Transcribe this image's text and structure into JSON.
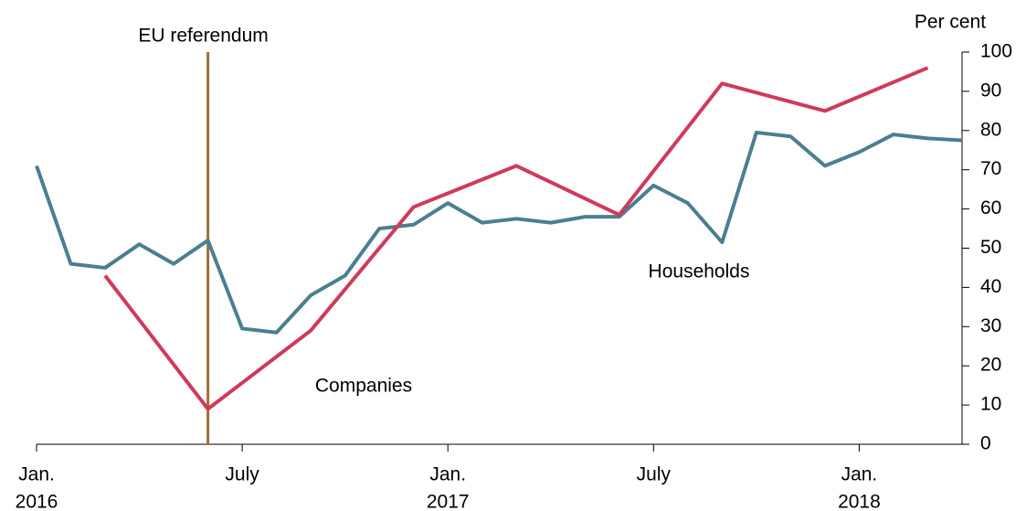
{
  "chart_data": {
    "type": "line",
    "y_axis_label": "Per cent",
    "annotation": {
      "text": "EU referendum",
      "x": "2016-06",
      "color": "#a46d35"
    },
    "xlim": [
      "2016-01",
      "2018-04"
    ],
    "xticks": [
      {
        "value": "2016-01",
        "label": [
          "Jan.",
          "2016"
        ]
      },
      {
        "value": "2016-07",
        "label": [
          "July"
        ]
      },
      {
        "value": "2017-01",
        "label": [
          "Jan.",
          "2017"
        ]
      },
      {
        "value": "2017-07",
        "label": [
          "July"
        ]
      },
      {
        "value": "2018-01",
        "label": [
          "Jan.",
          "2018"
        ]
      }
    ],
    "ylim": [
      0,
      100
    ],
    "yticks": [
      0,
      10,
      20,
      30,
      40,
      50,
      60,
      70,
      80,
      90,
      100
    ],
    "series": [
      {
        "name": "Households",
        "color": "#4a7f90",
        "x": [
          "2016-01",
          "2016-02",
          "2016-03",
          "2016-04",
          "2016-05",
          "2016-06",
          "2016-07",
          "2016-08",
          "2016-09",
          "2016-10",
          "2016-11",
          "2016-12",
          "2017-01",
          "2017-02",
          "2017-03",
          "2017-04",
          "2017-05",
          "2017-06",
          "2017-07",
          "2017-08",
          "2017-09",
          "2017-10",
          "2017-11",
          "2017-12",
          "2018-01",
          "2018-02",
          "2018-03",
          "2018-04"
        ],
        "values": [
          71,
          46,
          45,
          51,
          46,
          52,
          29.5,
          28.5,
          38,
          43,
          55,
          56,
          61.5,
          56.5,
          57.5,
          56.5,
          58,
          58,
          66,
          61.5,
          51.5,
          79.5,
          78.5,
          71,
          74.5,
          79,
          78,
          77.5
        ]
      },
      {
        "name": "Companies",
        "color": "#cf3a5c",
        "x": [
          "2016-03",
          "2016-06",
          "2016-09",
          "2016-12",
          "2017-03",
          "2017-06",
          "2017-09",
          "2017-12",
          "2018-03"
        ],
        "values": [
          43,
          9,
          29,
          60.5,
          71,
          58.5,
          92,
          85,
          96
        ]
      }
    ]
  }
}
